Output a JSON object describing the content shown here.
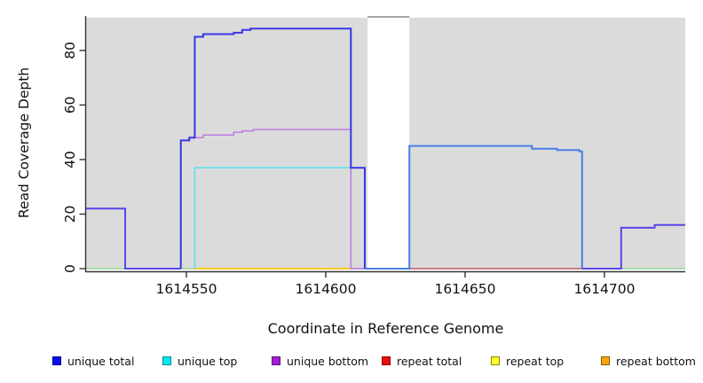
{
  "chart_data": {
    "type": "line",
    "subtype": "step-coverage",
    "title": "",
    "xlabel": "Coordinate in Reference Genome",
    "ylabel": "Read Coverage Depth",
    "x_ticks": [
      1614550,
      1614600,
      1614650,
      1614700
    ],
    "y_ticks": [
      0,
      20,
      40,
      60,
      80
    ],
    "x_domain": [
      1614514,
      1614729
    ],
    "y_domain": [
      0,
      92
    ],
    "grid": false,
    "plot_background": "#DBDBDB",
    "axis_color": "#333333",
    "uncovered_region": {
      "x_from": 1614615,
      "x_to": 1614630,
      "fill": "#FFFFFF",
      "cap_color": "#8A8A8A"
    },
    "lines": [
      {
        "name": "zero-baseline-green",
        "color": "#8FD98F",
        "width": 1.3,
        "points": [
          [
            1614514,
            0
          ],
          [
            1614729,
            0
          ]
        ]
      },
      {
        "name": "repeat-bottom",
        "color": "#FF9E1B",
        "width": 2,
        "points": [
          [
            1614553,
            0
          ],
          [
            1614609,
            0
          ]
        ]
      },
      {
        "name": "repeat-total",
        "color": "#CE4756",
        "width": 1.3,
        "points": [
          [
            1614630,
            0
          ],
          [
            1614692,
            0
          ]
        ]
      },
      {
        "name": "repeat-top",
        "color": "#FFF02E",
        "width": 1,
        "points": [
          [
            1614553,
            0
          ],
          [
            1614609,
            0
          ]
        ]
      },
      {
        "name": "unique-top",
        "color": "#5CE2EC",
        "width": 1.6,
        "points": [
          [
            1614553,
            0
          ],
          [
            1614553,
            37
          ],
          [
            1614609,
            37
          ]
        ]
      },
      {
        "name": "unique-bottom",
        "color": "#BB76E2",
        "width": 1.4,
        "points": [
          [
            1614548,
            0
          ],
          [
            1614548,
            47
          ],
          [
            1614551,
            47
          ],
          [
            1614551,
            48
          ],
          [
            1614556,
            48
          ],
          [
            1614556,
            49
          ],
          [
            1614567,
            49
          ],
          [
            1614567,
            50
          ],
          [
            1614570,
            50
          ],
          [
            1614570,
            50.5
          ],
          [
            1614574,
            50.5
          ],
          [
            1614574,
            51
          ],
          [
            1614609,
            51
          ],
          [
            1614609,
            0
          ],
          [
            1614614,
            0
          ]
        ]
      },
      {
        "name": "unique-total-left",
        "color": "#5847E8",
        "width": 2,
        "points": [
          [
            1614514,
            22
          ],
          [
            1614528,
            22
          ],
          [
            1614528,
            0
          ],
          [
            1614548,
            0
          ]
        ]
      },
      {
        "name": "unique-total-main",
        "color": "#3736E3",
        "width": 2,
        "points": [
          [
            1614548,
            0
          ],
          [
            1614548,
            47
          ],
          [
            1614551,
            47
          ],
          [
            1614551,
            48
          ],
          [
            1614553,
            48
          ],
          [
            1614553,
            85
          ],
          [
            1614556,
            85
          ],
          [
            1614556,
            86
          ],
          [
            1614567,
            86
          ],
          [
            1614567,
            86.5
          ],
          [
            1614570,
            86.5
          ],
          [
            1614570,
            87.5
          ],
          [
            1614573,
            87.5
          ],
          [
            1614573,
            88
          ],
          [
            1614609,
            88
          ],
          [
            1614609,
            37
          ],
          [
            1614614,
            37
          ],
          [
            1614614,
            0
          ]
        ]
      },
      {
        "name": "unique-total-mid",
        "color": "#4A7FE8",
        "width": 2,
        "points": [
          [
            1614614,
            0
          ],
          [
            1614630,
            0
          ],
          [
            1614630,
            45
          ],
          [
            1614674,
            45
          ],
          [
            1614674,
            44
          ],
          [
            1614683,
            44
          ],
          [
            1614683,
            43.5
          ],
          [
            1614691,
            43.5
          ],
          [
            1614691,
            43
          ],
          [
            1614692,
            43
          ],
          [
            1614692,
            0
          ]
        ]
      },
      {
        "name": "unique-total-right",
        "color": "#5847E8",
        "width": 2,
        "points": [
          [
            1614692,
            0
          ],
          [
            1614706,
            0
          ],
          [
            1614706,
            15
          ],
          [
            1614718,
            15
          ],
          [
            1614718,
            16
          ],
          [
            1614729,
            16
          ]
        ]
      }
    ],
    "legend": [
      {
        "label": "unique total",
        "color": "#0D0DE8",
        "border": "#000099"
      },
      {
        "label": "unique top",
        "color": "#00E8F0",
        "border": "#008B99"
      },
      {
        "label": "unique bottom",
        "color": "#A61CD6",
        "border": "#5E0E7A"
      },
      {
        "label": "repeat total",
        "color": "#E81111",
        "border": "#8B0000"
      },
      {
        "label": "repeat top",
        "color": "#FFFF2E",
        "border": "#8B8B00"
      },
      {
        "label": "repeat bottom",
        "color": "#FFA40F",
        "border": "#8B5A00"
      }
    ]
  }
}
